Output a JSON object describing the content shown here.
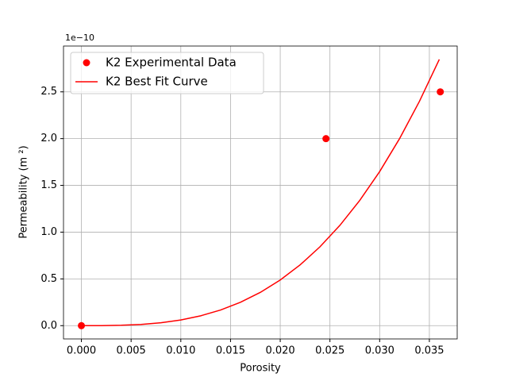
{
  "chart_data": {
    "type": "line",
    "x_label": "Porosity",
    "y_label": "Permeability (m ²)",
    "y_offset_label": "1e−10",
    "xlim": [
      -0.0018,
      0.0378
    ],
    "ylim": [
      -0.142,
      2.99
    ],
    "xticks": [
      {
        "value": 0,
        "label": "0.000"
      },
      {
        "value": 0.005,
        "label": "0.005"
      },
      {
        "value": 0.01,
        "label": "0.010"
      },
      {
        "value": 0.015,
        "label": "0.015"
      },
      {
        "value": 0.02,
        "label": "0.020"
      },
      {
        "value": 0.025,
        "label": "0.025"
      },
      {
        "value": 0.03,
        "label": "0.030"
      },
      {
        "value": 0.035,
        "label": "0.035"
      }
    ],
    "yticks": [
      {
        "value": 0,
        "label": "0.0"
      },
      0.5,
      {
        "value": 1,
        "label": "1.0"
      },
      1.5,
      {
        "value": 2,
        "label": "2.0"
      },
      2.5
    ],
    "grid": true,
    "legend": "upper left",
    "series": [
      {
        "name": "K2 Experimental Data",
        "color": "#ff0000",
        "style": "markers",
        "x": [
          0,
          0.0246,
          0.0361
        ],
        "values": [
          0,
          2.0,
          2.5
        ]
      },
      {
        "name": "K2 Best Fit Curve",
        "color": "#ff0000",
        "style": "line",
        "x": [
          0,
          0.002,
          0.004,
          0.006,
          0.008,
          0.01,
          0.012,
          0.014,
          0.016,
          0.018,
          0.02,
          0.022,
          0.024,
          0.026,
          0.028,
          0.03,
          0.032,
          0.034,
          0.036
        ],
        "values": [
          0,
          0.000488,
          0.0039,
          0.0132,
          0.0312,
          0.061,
          0.1054,
          0.1674,
          0.2499,
          0.3559,
          0.4882,
          0.6497,
          0.8436,
          1.0725,
          1.3395,
          1.6476,
          1.9995,
          2.3984,
          2.847
        ]
      }
    ]
  }
}
